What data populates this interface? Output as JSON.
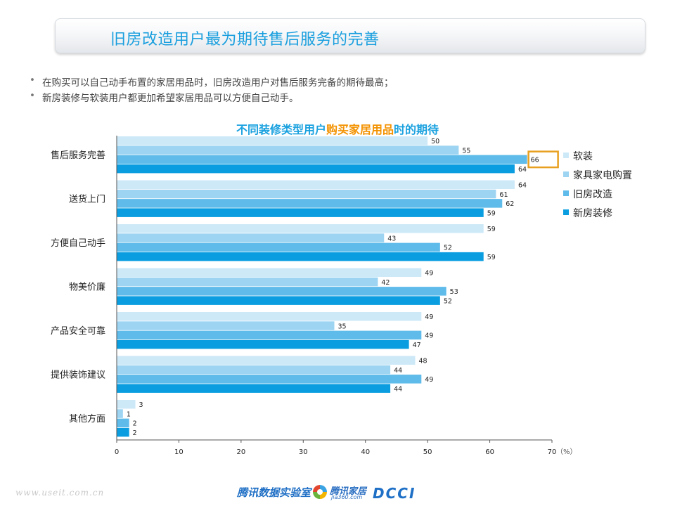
{
  "header": {
    "title": "旧房改造用户最为期待售后服务的完善"
  },
  "bullets": [
    "在购买可以自己动手布置的家居用品时，旧房改造用户对售后服务完备的期待最高；",
    "新房装修与软装用户都更加希望家居用品可以方便自己动手。"
  ],
  "chart_data": {
    "type": "bar",
    "orientation": "horizontal",
    "title_parts": [
      "不同装修类型用户",
      "购买家居用品",
      "时的期待"
    ],
    "categories": [
      "售后服务完善",
      "送货上门",
      "方便自己动手",
      "物美价廉",
      "产品安全可靠",
      "提供装饰建议",
      "其他方面"
    ],
    "series": [
      {
        "name": "软装",
        "color": "#cde9f8",
        "values": [
          50,
          64,
          59,
          49,
          49,
          48,
          3
        ]
      },
      {
        "name": "家具家电购置",
        "color": "#9dd4f2",
        "values": [
          55,
          61,
          43,
          42,
          35,
          44,
          1
        ]
      },
      {
        "name": "旧房改造",
        "color": "#5ebbea",
        "values": [
          66,
          62,
          52,
          53,
          49,
          49,
          2
        ]
      },
      {
        "name": "新房装修",
        "color": "#0a9ee0",
        "values": [
          64,
          59,
          59,
          52,
          47,
          44,
          2
        ]
      }
    ],
    "xlim": [
      0,
      70
    ],
    "xticks": [
      0,
      10,
      20,
      30,
      40,
      50,
      60,
      70
    ],
    "xunit": "（%）",
    "legend_position": "right",
    "highlight": {
      "category_index": 0,
      "series_index": 2,
      "color": "#e8a020"
    },
    "grid": false
  },
  "footer": {
    "url": "www.useit.com.cn",
    "lab": "腾讯数据实验室",
    "jia_name": "腾讯家居",
    "jia_sub": "jia360.com",
    "dcci": "DCCI"
  }
}
